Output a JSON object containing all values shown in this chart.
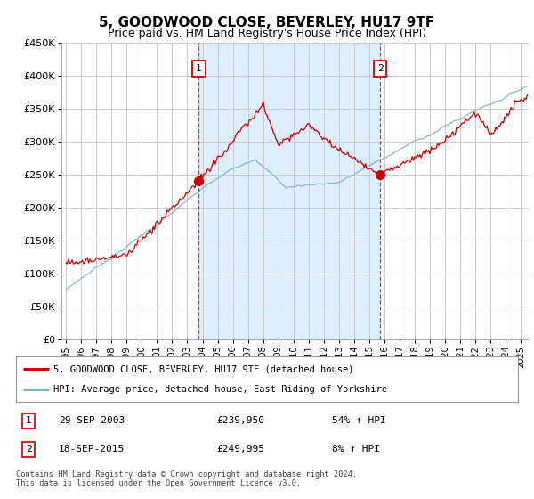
{
  "title": "5, GOODWOOD CLOSE, BEVERLEY, HU17 9TF",
  "subtitle": "Price paid vs. HM Land Registry's House Price Index (HPI)",
  "ylim": [
    0,
    450000
  ],
  "yticks": [
    0,
    50000,
    100000,
    150000,
    200000,
    250000,
    300000,
    350000,
    400000,
    450000
  ],
  "xlim_start": 1994.7,
  "xlim_end": 2025.5,
  "sale1_date": 2003.75,
  "sale1_price": 239950,
  "sale1_label": "1",
  "sale2_date": 2015.71,
  "sale2_price": 249995,
  "sale2_label": "2",
  "red_line_color": "#cc0000",
  "blue_line_color": "#7bafd4",
  "shade_color": "#ddeeff",
  "grid_color": "#cccccc",
  "background_color": "#ffffff",
  "legend_label_red": "5, GOODWOOD CLOSE, BEVERLEY, HU17 9TF (detached house)",
  "legend_label_blue": "HPI: Average price, detached house, East Riding of Yorkshire",
  "footer": "Contains HM Land Registry data © Crown copyright and database right 2024.\nThis data is licensed under the Open Government Licence v3.0.",
  "sale1_info_date": "29-SEP-2003",
  "sale1_info_price": "£239,950",
  "sale1_info_hpi": "54% ↑ HPI",
  "sale2_info_date": "18-SEP-2015",
  "sale2_info_price": "£249,995",
  "sale2_info_hpi": "8% ↑ HPI"
}
